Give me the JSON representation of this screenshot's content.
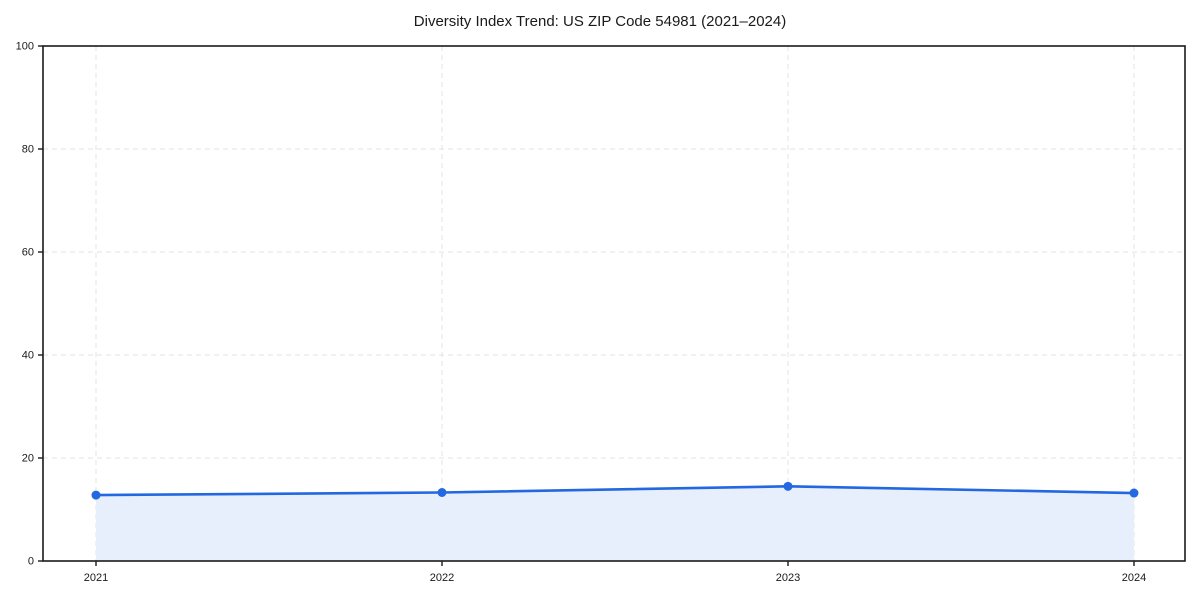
{
  "chart_data": {
    "type": "area",
    "title": "Diversity Index Trend: US ZIP Code 54981 (2021–2024)",
    "x": [
      "2021",
      "2022",
      "2023",
      "2024"
    ],
    "series": [
      {
        "name": "Diversity Index",
        "values": [
          12.8,
          13.3,
          14.5,
          13.2
        ]
      }
    ],
    "xlabel": "",
    "ylabel": "",
    "ylim": [
      0,
      100
    ],
    "yticks": [
      0,
      20,
      40,
      60,
      80,
      100
    ],
    "grid": true,
    "grid_style": "dashed",
    "legend": "none",
    "colors": {
      "line": "#2368e0",
      "marker": "#2368e0",
      "fill": "#e8effc",
      "grid": "#e3e3e3",
      "spine": "#1a1a1a",
      "text": "#1a1a1a",
      "background": "#ffffff"
    }
  }
}
